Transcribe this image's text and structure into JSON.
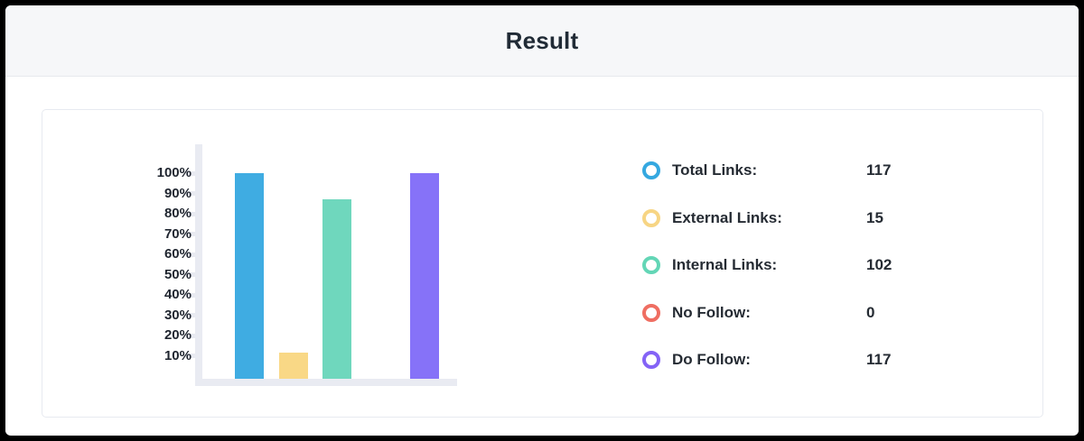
{
  "header": {
    "title": "Result"
  },
  "chart_data": {
    "type": "bar",
    "title": "",
    "xlabel": "",
    "ylabel": "",
    "categories": [
      "Total Links",
      "External Links",
      "Internal Links",
      "No Follow",
      "Do Follow"
    ],
    "values": [
      117,
      15,
      102,
      0,
      117
    ],
    "percent_values": [
      100,
      12.8,
      87.2,
      0,
      100
    ],
    "total": 117,
    "ylim": [
      0,
      100
    ],
    "ytick_labels": [
      "100%",
      "90%",
      "80%",
      "70%",
      "60%",
      "50%",
      "40%",
      "30%",
      "20%",
      "10%"
    ],
    "grid": false,
    "legend_position": "right",
    "bar_colors": [
      "#3face2",
      "#f9d886",
      "#6fd7bd",
      "#ef6e62",
      "#8672f8"
    ],
    "axis_color": "#e9ebf2"
  },
  "legend": {
    "items": [
      {
        "label": "Total Links:",
        "value": "117",
        "color": "#35a8e0"
      },
      {
        "label": "External Links:",
        "value": "15",
        "color": "#f7d584"
      },
      {
        "label": "Internal Links:",
        "value": "102",
        "color": "#63d6b6"
      },
      {
        "label": "No Follow:",
        "value": "0",
        "color": "#ef6e62"
      },
      {
        "label": "Do Follow:",
        "value": "117",
        "color": "#8463f6"
      }
    ]
  },
  "colors": {
    "header_bg": "#f6f7f9",
    "header_border": "#e7e9ed",
    "title_text": "#212b36",
    "card_border": "#e7eaf0",
    "axis": "#e9ebf2",
    "label_text": "#1e242e"
  }
}
